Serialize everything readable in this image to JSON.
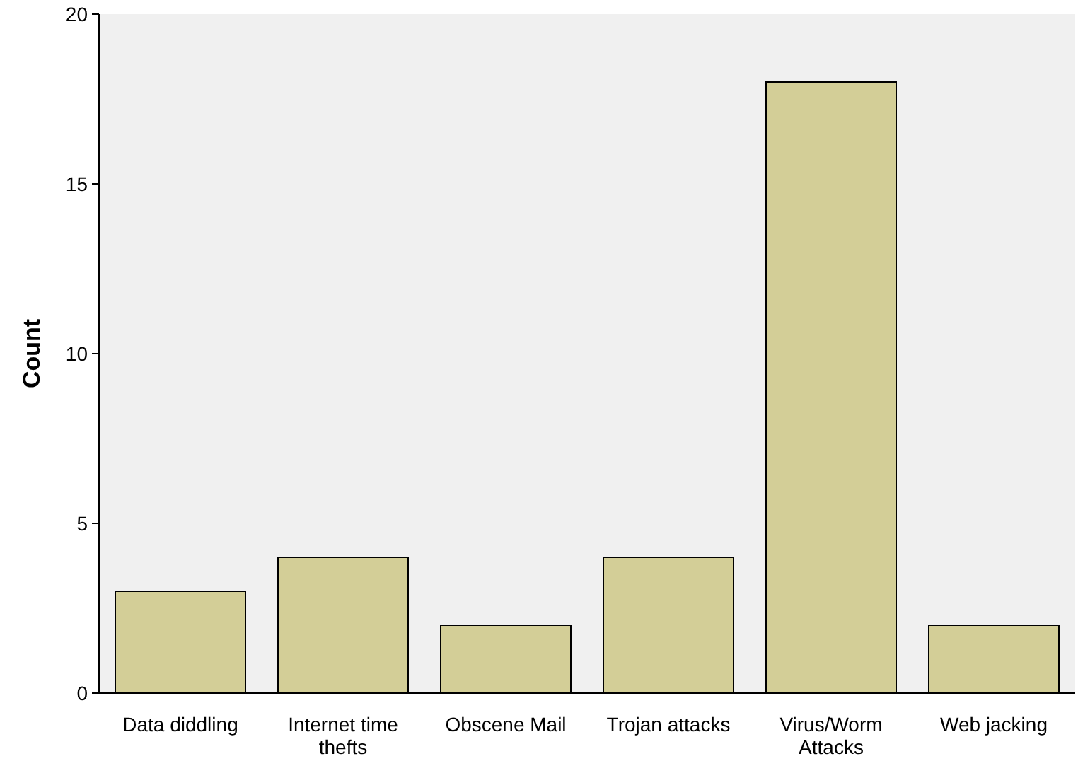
{
  "chart_data": {
    "type": "bar",
    "ylabel": "Count",
    "categories": [
      "Data diddling",
      "Internet time thefts",
      "Obscene Mail",
      "Trojan attacks",
      "Virus/Worm Attacks",
      "Web jacking"
    ],
    "values": [
      3,
      4,
      2,
      4,
      18,
      2
    ],
    "color": "#d3ce97",
    "ylim": [
      0,
      20
    ],
    "yticks": [
      0,
      5,
      10,
      15,
      20
    ],
    "grid": false
  }
}
